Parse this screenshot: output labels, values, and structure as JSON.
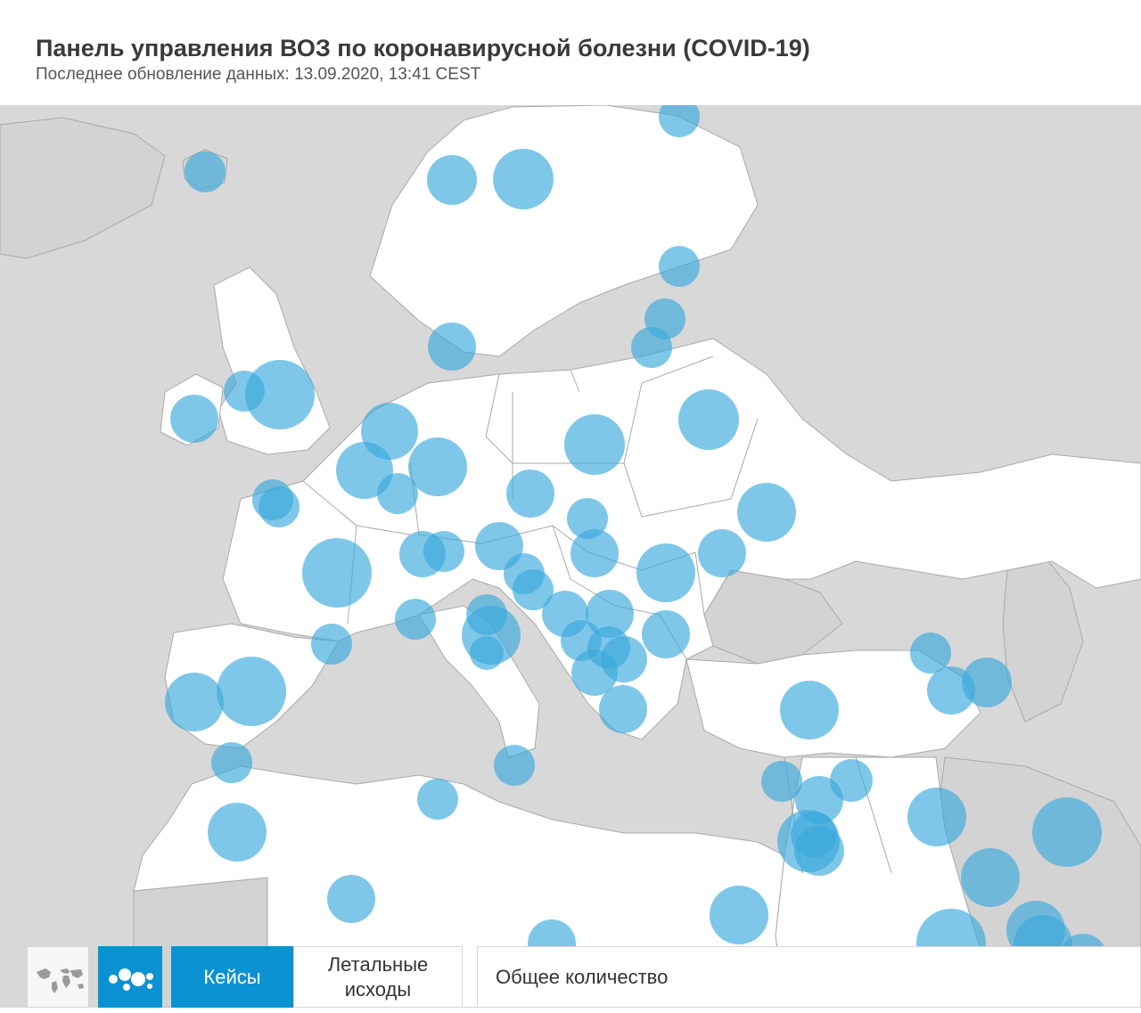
{
  "header": {
    "title": "Панель управления ВОЗ по коронавирусной болезни (COVID-19)",
    "subtitle": "Последнее обновление данных: 13.09.2020, 13:41 CEST"
  },
  "map": {
    "metric": "Кейсы",
    "bubble_color": "#3aa9dd",
    "land_color": "#ffffff",
    "other_land_color": "#d3d3d3",
    "border_color": "#a9a9a9"
  },
  "toolbar": {
    "map_icon": "world-map-icon",
    "bubble_icon": "bubble-map-icon",
    "cases_label": "Кейсы",
    "deaths_label": "Летальные исходы",
    "total_label": "Общее количество",
    "active_color": "#0b92d2"
  }
}
